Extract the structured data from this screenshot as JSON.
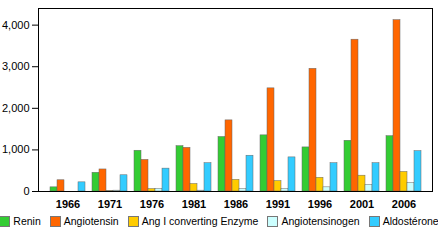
{
  "chart_data": {
    "type": "bar",
    "categories": [
      "1966",
      "1971",
      "1976",
      "1981",
      "1986",
      "1991",
      "1996",
      "2001",
      "2006"
    ],
    "series": [
      {
        "name": "Renin",
        "color": "#33cc33",
        "values": [
          100,
          450,
          980,
          1090,
          1310,
          1350,
          1060,
          1220,
          1330
        ]
      },
      {
        "name": "Angiotensin",
        "color": "#ff6600",
        "values": [
          270,
          530,
          760,
          1050,
          1710,
          2480,
          2950,
          3650,
          4120
        ]
      },
      {
        "name": "Ang I converting Enzyme",
        "color": "#ffcc00",
        "values": [
          0,
          10,
          60,
          180,
          280,
          250,
          330,
          380,
          470
        ]
      },
      {
        "name": "Angiotensinogen",
        "color": "#ccffff",
        "values": [
          0,
          20,
          60,
          20,
          60,
          60,
          100,
          160,
          200
        ]
      },
      {
        "name": "Aldostérone",
        "color": "#33ccff",
        "values": [
          220,
          390,
          550,
          680,
          860,
          820,
          680,
          680,
          970
        ]
      }
    ],
    "ylim": [
      0,
      4400
    ],
    "yticks": [
      0,
      1000,
      2000,
      3000,
      4000
    ],
    "grid": false,
    "legend": "bottom"
  }
}
